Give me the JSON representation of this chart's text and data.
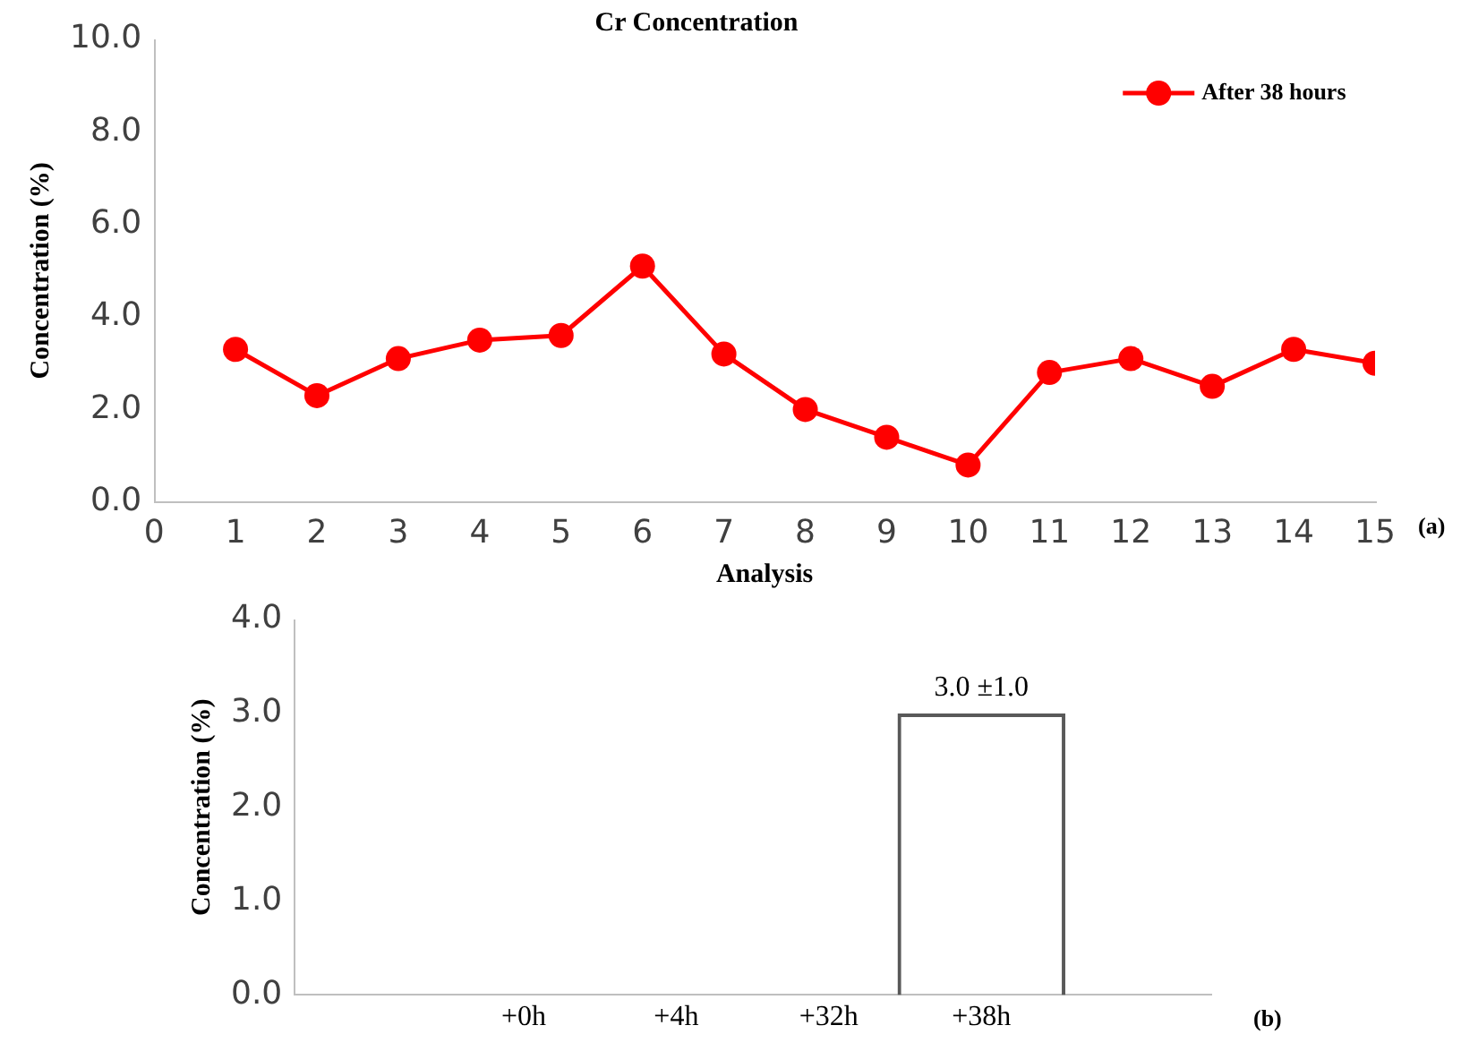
{
  "chart_data": [
    {
      "type": "line",
      "title": "Cr Concentration",
      "xlabel": "Analysis",
      "ylabel": "Concentration (%)",
      "annotations": [
        "(a)"
      ],
      "x": [
        1,
        2,
        3,
        4,
        5,
        6,
        7,
        8,
        9,
        10,
        11,
        12,
        13,
        14,
        15
      ],
      "series": [
        {
          "name": "After 38 hours",
          "color": "#ff0000",
          "values": [
            3.3,
            2.3,
            3.1,
            3.5,
            3.6,
            5.1,
            3.2,
            2.0,
            1.4,
            0.8,
            2.8,
            3.1,
            2.5,
            3.3,
            3.0
          ]
        }
      ],
      "xlim": [
        0,
        15
      ],
      "xticks": [
        0,
        1,
        2,
        3,
        4,
        5,
        6,
        7,
        8,
        9,
        10,
        11,
        12,
        13,
        14,
        15
      ],
      "ylim": [
        0,
        10
      ],
      "yticks": [
        {
          "value": 0,
          "label": "0.0"
        },
        {
          "value": 2,
          "label": "2.0"
        },
        {
          "value": 4,
          "label": "4.0"
        },
        {
          "value": 6,
          "label": "6.0"
        },
        {
          "value": 8,
          "label": "8.0"
        },
        {
          "value": 10,
          "label": "10.0"
        }
      ],
      "grid": false,
      "legend": "top right",
      "marker": "circle",
      "line_style": "solid"
    },
    {
      "type": "bar",
      "ylabel": "Concentration (%)",
      "annotations": [
        "(b)"
      ],
      "categories": [
        null,
        "+0h",
        "+4h",
        "+32h",
        "+38h",
        null
      ],
      "values": [
        null,
        null,
        null,
        null,
        3.0,
        null
      ],
      "value_labels": [
        null,
        null,
        null,
        null,
        "3.0 ±1.0",
        null
      ],
      "color": "#595959",
      "ylim": [
        0,
        4
      ],
      "yticks": [
        {
          "value": 0,
          "label": "0.0"
        },
        {
          "value": 1,
          "label": "1.0"
        },
        {
          "value": 2,
          "label": "2.0"
        },
        {
          "value": 3,
          "label": "3.0"
        },
        {
          "value": 4,
          "label": "4.0"
        }
      ],
      "grid": false,
      "legend": false
    }
  ]
}
